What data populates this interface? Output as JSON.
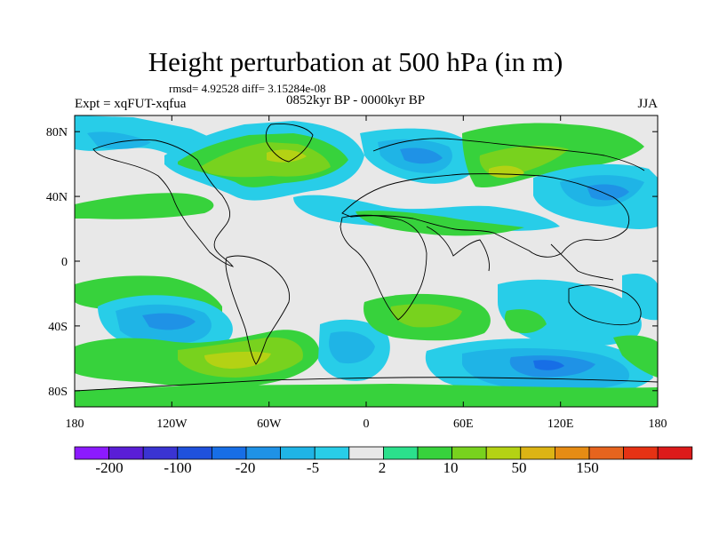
{
  "title": "Height perturbation at 500 hPa (in m)",
  "stats": "rmsd= 4.92528 diff= 3.15284e-08",
  "expt": "Expt = xqFUT-xqfua",
  "period": "0852kyr BP - 0000kyr BP",
  "season": "JJA",
  "colors": {
    "bin_-200": "#8c1aff",
    "bin_-150": "#5a1ed6",
    "bin_-100": "#3a34d2",
    "bin_-50": "#1f51dc",
    "bin_-20": "#176ee6",
    "bin_-10": "#1f92e6",
    "bin_-5": "#1fb4e6",
    "bin_-2": "#28cde8",
    "bin_0": "#e8e8e8",
    "bin_2": "#2be08c",
    "bin_5": "#37d23c",
    "bin_10": "#78d21e",
    "bin_20": "#b4d214",
    "bin_50": "#dcb414",
    "bin_100": "#e68c14",
    "bin_150": "#e6641e",
    "bin_200": "#e63214",
    "bin_max": "#dc1a1a"
  },
  "map": {
    "lon_ticks": [
      "180",
      "120W",
      "60W",
      "0",
      "60E",
      "120E",
      "180"
    ],
    "lat_ticks": [
      "80N",
      "40N",
      "0",
      "40S",
      "80S"
    ]
  },
  "colorbar": {
    "labels": [
      "-200",
      "-100",
      "-20",
      "-5",
      "2",
      "10",
      "50",
      "150"
    ]
  }
}
